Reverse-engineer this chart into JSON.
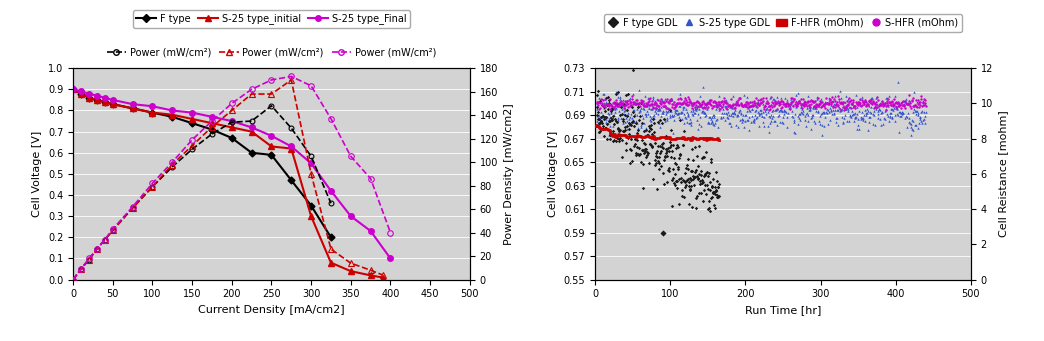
{
  "fig_width": 10.44,
  "fig_height": 3.41,
  "bg_color": "#d3d3d3",
  "left_chart": {
    "ylabel_left": "Cell Voltage [V]",
    "ylabel_right": "Power Density [mW/cm2]",
    "xlabel": "Current Density [mA/cm2]",
    "xlim": [
      0,
      500
    ],
    "ylim_left": [
      0,
      1.0
    ],
    "ylim_right": [
      0,
      180
    ],
    "yticks_left": [
      0,
      0.1,
      0.2,
      0.3,
      0.4,
      0.5,
      0.6,
      0.7,
      0.8,
      0.9,
      1.0
    ],
    "yticks_right": [
      0,
      20,
      40,
      60,
      80,
      100,
      120,
      140,
      160,
      180
    ],
    "xticks": [
      0,
      50,
      100,
      150,
      200,
      250,
      300,
      350,
      400,
      450,
      500
    ],
    "f_type_iv_x": [
      0,
      10,
      20,
      30,
      40,
      50,
      75,
      100,
      125,
      150,
      175,
      200,
      225,
      250,
      275,
      300,
      325
    ],
    "f_type_iv_y": [
      0.9,
      0.88,
      0.86,
      0.85,
      0.84,
      0.83,
      0.81,
      0.79,
      0.77,
      0.74,
      0.71,
      0.67,
      0.6,
      0.59,
      0.47,
      0.35,
      0.2
    ],
    "s25_initial_iv_x": [
      0,
      10,
      20,
      30,
      40,
      50,
      75,
      100,
      125,
      150,
      175,
      200,
      225,
      250,
      275,
      300,
      325,
      350,
      375,
      390
    ],
    "s25_initial_iv_y": [
      0.9,
      0.88,
      0.86,
      0.85,
      0.84,
      0.83,
      0.81,
      0.79,
      0.78,
      0.76,
      0.74,
      0.72,
      0.7,
      0.63,
      0.62,
      0.3,
      0.08,
      0.04,
      0.02,
      0.01
    ],
    "s25_final_iv_x": [
      0,
      10,
      20,
      30,
      40,
      50,
      75,
      100,
      125,
      150,
      175,
      200,
      225,
      250,
      275,
      300,
      325,
      350,
      375,
      400
    ],
    "s25_final_iv_y": [
      0.9,
      0.89,
      0.88,
      0.87,
      0.86,
      0.85,
      0.83,
      0.82,
      0.8,
      0.79,
      0.77,
      0.75,
      0.72,
      0.68,
      0.63,
      0.55,
      0.42,
      0.3,
      0.23,
      0.1
    ],
    "f_type_pw_x": [
      0,
      10,
      20,
      30,
      40,
      50,
      75,
      100,
      125,
      150,
      175,
      200,
      225,
      250,
      275,
      300,
      325
    ],
    "f_type_pw_y": [
      0,
      9,
      17,
      26,
      34,
      42,
      61,
      79,
      96,
      111,
      124,
      134,
      135,
      148,
      129,
      105,
      65
    ],
    "s25_initial_pw_x": [
      0,
      10,
      20,
      30,
      40,
      50,
      75,
      100,
      125,
      150,
      175,
      200,
      225,
      250,
      275,
      300,
      325,
      350,
      375,
      390
    ],
    "s25_initial_pw_y": [
      0,
      9,
      17,
      26,
      34,
      42,
      61,
      79,
      98,
      114,
      130,
      144,
      158,
      158,
      170,
      90,
      26,
      14,
      8,
      4
    ],
    "s25_final_pw_x": [
      0,
      10,
      20,
      30,
      40,
      50,
      75,
      100,
      125,
      150,
      175,
      200,
      225,
      250,
      275,
      300,
      325,
      350,
      375,
      400
    ],
    "s25_final_pw_y": [
      0,
      9,
      18,
      26,
      34,
      43,
      62,
      82,
      100,
      119,
      135,
      150,
      162,
      170,
      173,
      165,
      137,
      105,
      86,
      40
    ],
    "colors": {
      "f_type": "#000000",
      "s25_initial": "#cc0000",
      "s25_final": "#cc00cc"
    }
  },
  "right_chart": {
    "ylabel_left": "Cell Voltage [V]",
    "ylabel_right": "Cell Reistance [mohm]",
    "xlabel": "Run Time [hr]",
    "xlim": [
      0,
      500
    ],
    "ylim_left": [
      0.55,
      0.73
    ],
    "ylim_right": [
      0,
      12
    ],
    "yticks_left": [
      0.55,
      0.57,
      0.59,
      0.61,
      0.63,
      0.65,
      0.67,
      0.69,
      0.71,
      0.73
    ],
    "yticks_right": [
      0,
      2,
      4,
      6,
      8,
      10,
      12
    ],
    "xticks": [
      0,
      100,
      200,
      300,
      400,
      500
    ],
    "colors": {
      "f_gdl": "#1a1a1a",
      "s25_gdl": "#3355cc",
      "f_hfr": "#cc0000",
      "s_hfr": "#cc00cc"
    }
  }
}
